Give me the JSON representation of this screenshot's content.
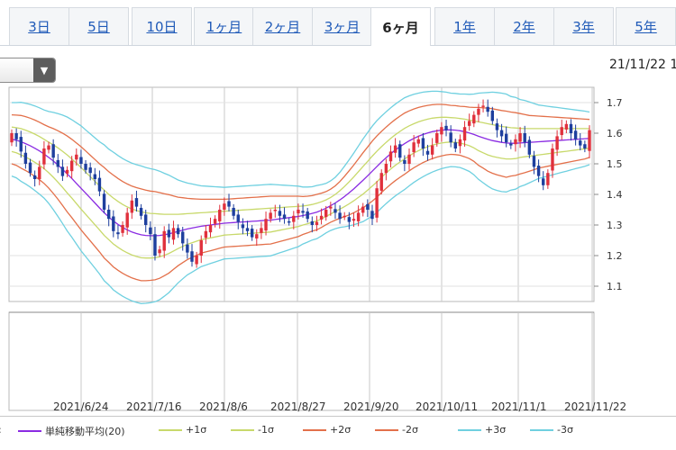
{
  "tabs": [
    {
      "label": "3日",
      "active": false
    },
    {
      "label": "5日",
      "active": false
    },
    {
      "label": "10日",
      "active": false
    },
    {
      "label": "1ヶ月",
      "active": false
    },
    {
      "label": "2ヶ月",
      "active": false
    },
    {
      "label": "3ヶ月",
      "active": false
    },
    {
      "label": "6ヶ月",
      "active": true
    },
    {
      "label": "1年",
      "active": false
    },
    {
      "label": "2年",
      "active": false
    },
    {
      "label": "3年",
      "active": false
    },
    {
      "label": "5年",
      "active": false
    }
  ],
  "dropdown": {
    "icon": "caret-down-icon",
    "arrow": "▼"
  },
  "datestamp": "21/11/22 1",
  "legend": {
    "prefix": ":",
    "items": [
      {
        "label": "単純移動平均(20)",
        "color": "#8a2be2"
      },
      {
        "label": "+1σ",
        "color": "#c8d96b"
      },
      {
        "label": "-1σ",
        "color": "#c8d96b"
      },
      {
        "label": "+2σ",
        "color": "#e3704a"
      },
      {
        "label": "-2σ",
        "color": "#e3704a"
      },
      {
        "label": "+3σ",
        "color": "#6fd0e0"
      },
      {
        "label": "-3σ",
        "color": "#6fd0e0"
      }
    ]
  },
  "chart_data": {
    "type": "candlestick",
    "ylim": [
      1.05,
      1.75
    ],
    "y_ticks": [
      "1.1",
      "1.2",
      "1.3",
      "1.4",
      "1.5",
      "1.6",
      "1.7"
    ],
    "x_tick_labels": [
      "2021/6/24",
      "2021/7/16",
      "2021/8/6",
      "2021/8/27",
      "2021/9/20",
      "2021/10/11",
      "2021/11/1",
      "2021/11/22"
    ],
    "grid": true,
    "up_color": "#e0303c",
    "down_color": "#1e3f9e",
    "closes": [
      1.6,
      1.58,
      1.54,
      1.5,
      1.47,
      1.45,
      1.49,
      1.55,
      1.56,
      1.52,
      1.49,
      1.46,
      1.48,
      1.51,
      1.53,
      1.5,
      1.48,
      1.47,
      1.45,
      1.41,
      1.35,
      1.32,
      1.28,
      1.27,
      1.3,
      1.34,
      1.38,
      1.36,
      1.33,
      1.3,
      1.27,
      1.2,
      1.22,
      1.28,
      1.26,
      1.29,
      1.27,
      1.24,
      1.21,
      1.18,
      1.2,
      1.25,
      1.28,
      1.3,
      1.32,
      1.35,
      1.37,
      1.36,
      1.33,
      1.31,
      1.29,
      1.28,
      1.26,
      1.27,
      1.29,
      1.32,
      1.34,
      1.35,
      1.33,
      1.32,
      1.31,
      1.33,
      1.35,
      1.34,
      1.32,
      1.3,
      1.31,
      1.33,
      1.35,
      1.36,
      1.34,
      1.32,
      1.33,
      1.31,
      1.32,
      1.34,
      1.36,
      1.35,
      1.32,
      1.42,
      1.47,
      1.5,
      1.54,
      1.56,
      1.52,
      1.5,
      1.53,
      1.57,
      1.58,
      1.55,
      1.53,
      1.56,
      1.6,
      1.62,
      1.61,
      1.57,
      1.55,
      1.58,
      1.62,
      1.64,
      1.66,
      1.68,
      1.69,
      1.67,
      1.64,
      1.61,
      1.59,
      1.57,
      1.56,
      1.58,
      1.6,
      1.57,
      1.53,
      1.49,
      1.46,
      1.43,
      1.47,
      1.55,
      1.59,
      1.62,
      1.63,
      1.6,
      1.58,
      1.56,
      1.55,
      1.61
    ],
    "series": [
      {
        "name": "単純移動平均(20)",
        "values": [
          1.58,
          1.577,
          1.572,
          1.566,
          1.559,
          1.551,
          1.542,
          1.532,
          1.521,
          1.509,
          1.496,
          1.482,
          1.467,
          1.452,
          1.436,
          1.42,
          1.404,
          1.388,
          1.372,
          1.356,
          1.34,
          1.326,
          1.313,
          1.302,
          1.292,
          1.284,
          1.277,
          1.272,
          1.268,
          1.266,
          1.265,
          1.265,
          1.266,
          1.268,
          1.271,
          1.275,
          1.279,
          1.283,
          1.287,
          1.29,
          1.293,
          1.296,
          1.298,
          1.3,
          1.302,
          1.304,
          1.306,
          1.307,
          1.308,
          1.309,
          1.31,
          1.311,
          1.312,
          1.313,
          1.314,
          1.315,
          1.316,
          1.318,
          1.32,
          1.322,
          1.324,
          1.326,
          1.328,
          1.331,
          1.334,
          1.338,
          1.342,
          1.348,
          1.355,
          1.363,
          1.372,
          1.382,
          1.393,
          1.405,
          1.418,
          1.432,
          1.446,
          1.461,
          1.476,
          1.491,
          1.506,
          1.52,
          1.533,
          1.545,
          1.556,
          1.566,
          1.575,
          1.583,
          1.59,
          1.596,
          1.601,
          1.605,
          1.608,
          1.61,
          1.611,
          1.611,
          1.61,
          1.608,
          1.605,
          1.601,
          1.596,
          1.59,
          1.585,
          1.58,
          1.576,
          1.573,
          1.57,
          1.568,
          1.567,
          1.567,
          1.568,
          1.569,
          1.57,
          1.571,
          1.572,
          1.573,
          1.574,
          1.575,
          1.576,
          1.577,
          1.578,
          1.579,
          1.58,
          1.581,
          1.582,
          1.583
        ]
      },
      {
        "name": "+1σ",
        "values": [
          1.62,
          1.618,
          1.615,
          1.61,
          1.604,
          1.597,
          1.589,
          1.58,
          1.571,
          1.562,
          1.552,
          1.541,
          1.529,
          1.516,
          1.502,
          1.488,
          1.473,
          1.458,
          1.443,
          1.428,
          1.414,
          1.4,
          1.388,
          1.377,
          1.367,
          1.359,
          1.352,
          1.347,
          1.343,
          1.34,
          1.338,
          1.337,
          1.336,
          1.335,
          1.335,
          1.335,
          1.335,
          1.336,
          1.337,
          1.338,
          1.339,
          1.34,
          1.341,
          1.342,
          1.343,
          1.344,
          1.345,
          1.346,
          1.347,
          1.348,
          1.349,
          1.35,
          1.351,
          1.352,
          1.353,
          1.354,
          1.355,
          1.356,
          1.357,
          1.358,
          1.359,
          1.36,
          1.361,
          1.362,
          1.364,
          1.367,
          1.371,
          1.376,
          1.382,
          1.39,
          1.4,
          1.412,
          1.426,
          1.441,
          1.457,
          1.474,
          1.491,
          1.508,
          1.525,
          1.541,
          1.556,
          1.57,
          1.583,
          1.595,
          1.606,
          1.616,
          1.624,
          1.631,
          1.637,
          1.642,
          1.646,
          1.649,
          1.651,
          1.652,
          1.652,
          1.651,
          1.65,
          1.648,
          1.646,
          1.643,
          1.64,
          1.637,
          1.634,
          1.631,
          1.628,
          1.625,
          1.622,
          1.62,
          1.618,
          1.617,
          1.616,
          1.615,
          1.615,
          1.615,
          1.615,
          1.615,
          1.615,
          1.615,
          1.615,
          1.615,
          1.615,
          1.615,
          1.615,
          1.615,
          1.615,
          1.615
        ]
      },
      {
        "name": "-1σ",
        "values": [
          1.54,
          1.536,
          1.529,
          1.522,
          1.514,
          1.505,
          1.495,
          1.484,
          1.471,
          1.456,
          1.44,
          1.423,
          1.405,
          1.388,
          1.37,
          1.352,
          1.335,
          1.318,
          1.301,
          1.284,
          1.266,
          1.252,
          1.238,
          1.227,
          1.217,
          1.209,
          1.202,
          1.197,
          1.193,
          1.192,
          1.192,
          1.193,
          1.196,
          1.201,
          1.207,
          1.215,
          1.223,
          1.23,
          1.237,
          1.242,
          1.247,
          1.252,
          1.255,
          1.258,
          1.261,
          1.264,
          1.267,
          1.268,
          1.269,
          1.27,
          1.271,
          1.272,
          1.273,
          1.274,
          1.275,
          1.276,
          1.277,
          1.28,
          1.283,
          1.286,
          1.289,
          1.292,
          1.295,
          1.3,
          1.304,
          1.309,
          1.313,
          1.32,
          1.328,
          1.336,
          1.344,
          1.352,
          1.36,
          1.369,
          1.379,
          1.39,
          1.401,
          1.414,
          1.427,
          1.441,
          1.456,
          1.47,
          1.483,
          1.495,
          1.506,
          1.516,
          1.526,
          1.535,
          1.543,
          1.55,
          1.556,
          1.561,
          1.565,
          1.568,
          1.57,
          1.571,
          1.57,
          1.568,
          1.564,
          1.559,
          1.552,
          1.543,
          1.536,
          1.529,
          1.524,
          1.521,
          1.518,
          1.516,
          1.516,
          1.517,
          1.521,
          1.523,
          1.525,
          1.527,
          1.529,
          1.531,
          1.533,
          1.535,
          1.537,
          1.539,
          1.541,
          1.543,
          1.545,
          1.547,
          1.549,
          1.551
        ]
      },
      {
        "name": "+2σ",
        "values": [
          1.66,
          1.659,
          1.658,
          1.654,
          1.649,
          1.643,
          1.636,
          1.628,
          1.621,
          1.615,
          1.608,
          1.6,
          1.591,
          1.58,
          1.568,
          1.556,
          1.542,
          1.528,
          1.514,
          1.5,
          1.488,
          1.474,
          1.463,
          1.452,
          1.442,
          1.434,
          1.427,
          1.422,
          1.418,
          1.414,
          1.411,
          1.409,
          1.406,
          1.402,
          1.399,
          1.395,
          1.391,
          1.389,
          1.387,
          1.386,
          1.385,
          1.384,
          1.384,
          1.384,
          1.384,
          1.384,
          1.384,
          1.385,
          1.386,
          1.387,
          1.388,
          1.389,
          1.39,
          1.391,
          1.392,
          1.393,
          1.394,
          1.394,
          1.394,
          1.394,
          1.394,
          1.394,
          1.394,
          1.393,
          1.394,
          1.396,
          1.4,
          1.404,
          1.409,
          1.417,
          1.428,
          1.442,
          1.459,
          1.477,
          1.496,
          1.516,
          1.536,
          1.555,
          1.574,
          1.591,
          1.606,
          1.62,
          1.633,
          1.645,
          1.656,
          1.666,
          1.673,
          1.679,
          1.684,
          1.688,
          1.691,
          1.693,
          1.694,
          1.694,
          1.693,
          1.691,
          1.69,
          1.688,
          1.687,
          1.685,
          1.684,
          1.684,
          1.683,
          1.682,
          1.68,
          1.677,
          1.674,
          1.672,
          1.669,
          1.667,
          1.664,
          1.661,
          1.658,
          1.657,
          1.656,
          1.655,
          1.654,
          1.653,
          1.652,
          1.651,
          1.65,
          1.649,
          1.648,
          1.647,
          1.646,
          1.645
        ]
      },
      {
        "name": "-2σ",
        "values": [
          1.5,
          1.495,
          1.486,
          1.478,
          1.469,
          1.459,
          1.448,
          1.436,
          1.421,
          1.403,
          1.384,
          1.364,
          1.343,
          1.324,
          1.304,
          1.284,
          1.266,
          1.248,
          1.23,
          1.212,
          1.192,
          1.178,
          1.163,
          1.152,
          1.142,
          1.134,
          1.127,
          1.122,
          1.118,
          1.118,
          1.119,
          1.121,
          1.126,
          1.134,
          1.143,
          1.155,
          1.167,
          1.177,
          1.187,
          1.194,
          1.201,
          1.208,
          1.212,
          1.216,
          1.22,
          1.224,
          1.228,
          1.229,
          1.23,
          1.231,
          1.232,
          1.233,
          1.234,
          1.235,
          1.236,
          1.237,
          1.238,
          1.242,
          1.246,
          1.25,
          1.254,
          1.258,
          1.262,
          1.269,
          1.274,
          1.28,
          1.284,
          1.292,
          1.301,
          1.309,
          1.316,
          1.322,
          1.327,
          1.333,
          1.34,
          1.348,
          1.356,
          1.367,
          1.378,
          1.391,
          1.406,
          1.42,
          1.433,
          1.445,
          1.456,
          1.466,
          1.477,
          1.487,
          1.496,
          1.504,
          1.511,
          1.517,
          1.522,
          1.526,
          1.529,
          1.531,
          1.53,
          1.528,
          1.523,
          1.517,
          1.508,
          1.495,
          1.486,
          1.476,
          1.469,
          1.464,
          1.46,
          1.456,
          1.46,
          1.462,
          1.467,
          1.471,
          1.476,
          1.481,
          1.486,
          1.489,
          1.492,
          1.495,
          1.498,
          1.501,
          1.504,
          1.507,
          1.51,
          1.513,
          1.516,
          1.521
        ]
      },
      {
        "name": "+3σ",
        "values": [
          1.7,
          1.7,
          1.701,
          1.698,
          1.694,
          1.689,
          1.683,
          1.676,
          1.671,
          1.668,
          1.664,
          1.659,
          1.653,
          1.644,
          1.634,
          1.624,
          1.611,
          1.598,
          1.585,
          1.572,
          1.562,
          1.548,
          1.538,
          1.527,
          1.517,
          1.509,
          1.502,
          1.497,
          1.493,
          1.488,
          1.484,
          1.481,
          1.476,
          1.469,
          1.463,
          1.455,
          1.447,
          1.442,
          1.437,
          1.434,
          1.431,
          1.428,
          1.427,
          1.426,
          1.425,
          1.424,
          1.423,
          1.424,
          1.425,
          1.426,
          1.427,
          1.428,
          1.429,
          1.43,
          1.431,
          1.432,
          1.433,
          1.432,
          1.431,
          1.43,
          1.429,
          1.428,
          1.427,
          1.424,
          1.424,
          1.425,
          1.429,
          1.432,
          1.436,
          1.444,
          1.456,
          1.472,
          1.492,
          1.513,
          1.535,
          1.558,
          1.581,
          1.602,
          1.623,
          1.641,
          1.656,
          1.67,
          1.683,
          1.695,
          1.706,
          1.716,
          1.722,
          1.727,
          1.731,
          1.734,
          1.736,
          1.737,
          1.737,
          1.736,
          1.734,
          1.731,
          1.73,
          1.728,
          1.728,
          1.727,
          1.728,
          1.731,
          1.732,
          1.733,
          1.734,
          1.733,
          1.731,
          1.728,
          1.72,
          1.717,
          1.71,
          1.707,
          1.702,
          1.697,
          1.692,
          1.69,
          1.688,
          1.686,
          1.684,
          1.682,
          1.68,
          1.678,
          1.676,
          1.674,
          1.672,
          1.669
        ]
      },
      {
        "name": "-3σ",
        "values": [
          1.46,
          1.454,
          1.443,
          1.434,
          1.424,
          1.413,
          1.401,
          1.388,
          1.371,
          1.35,
          1.328,
          1.305,
          1.281,
          1.26,
          1.238,
          1.216,
          1.197,
          1.178,
          1.159,
          1.14,
          1.118,
          1.104,
          1.088,
          1.077,
          1.067,
          1.059,
          1.052,
          1.047,
          1.043,
          1.044,
          1.046,
          1.049,
          1.056,
          1.067,
          1.079,
          1.095,
          1.111,
          1.124,
          1.137,
          1.146,
          1.155,
          1.164,
          1.169,
          1.174,
          1.179,
          1.184,
          1.189,
          1.19,
          1.191,
          1.192,
          1.193,
          1.194,
          1.195,
          1.196,
          1.197,
          1.198,
          1.199,
          1.204,
          1.209,
          1.214,
          1.219,
          1.224,
          1.229,
          1.238,
          1.244,
          1.251,
          1.255,
          1.264,
          1.274,
          1.282,
          1.288,
          1.292,
          1.294,
          1.297,
          1.301,
          1.306,
          1.311,
          1.32,
          1.329,
          1.341,
          1.356,
          1.37,
          1.383,
          1.395,
          1.406,
          1.416,
          1.428,
          1.439,
          1.449,
          1.458,
          1.466,
          1.473,
          1.479,
          1.484,
          1.488,
          1.491,
          1.49,
          1.488,
          1.482,
          1.475,
          1.464,
          1.449,
          1.438,
          1.427,
          1.418,
          1.413,
          1.409,
          1.408,
          1.414,
          1.417,
          1.426,
          1.431,
          1.438,
          1.445,
          1.452,
          1.456,
          1.46,
          1.464,
          1.468,
          1.472,
          1.476,
          1.48,
          1.484,
          1.488,
          1.492,
          1.497
        ]
      }
    ]
  }
}
